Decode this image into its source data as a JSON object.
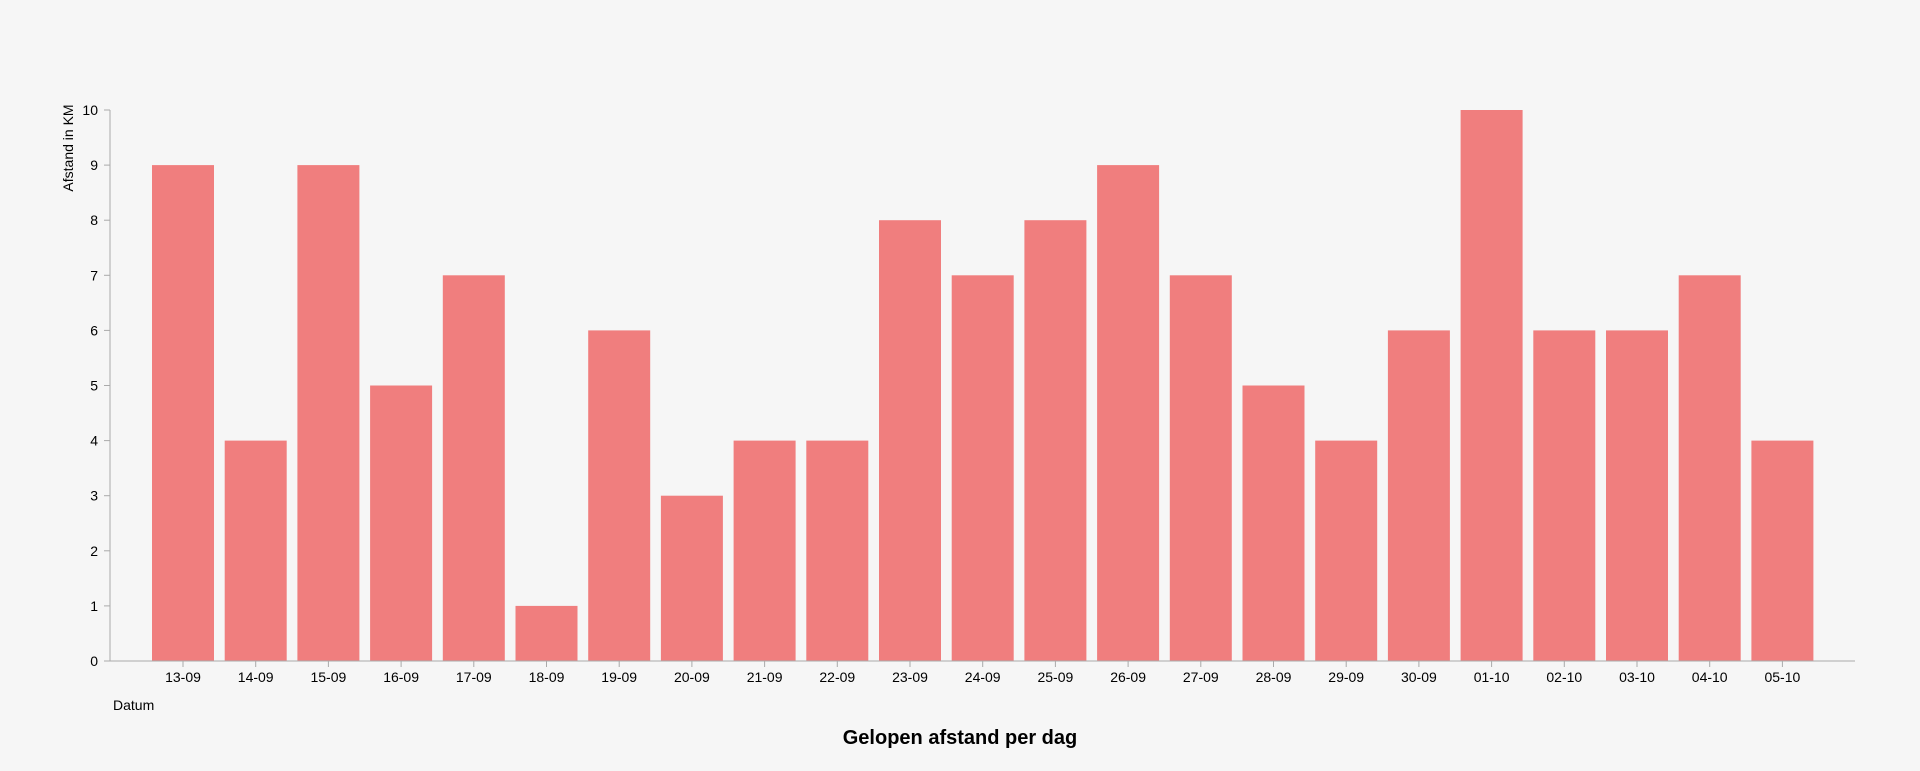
{
  "chart_data": {
    "type": "bar",
    "title": "Gelopen afstand per dag",
    "xlabel": "Datum",
    "ylabel": "Afstand in KM",
    "categories": [
      "13-09",
      "14-09",
      "15-09",
      "16-09",
      "17-09",
      "18-09",
      "19-09",
      "20-09",
      "21-09",
      "22-09",
      "23-09",
      "24-09",
      "25-09",
      "26-09",
      "27-09",
      "28-09",
      "29-09",
      "30-09",
      "01-10",
      "02-10",
      "03-10",
      "04-10",
      "05-10"
    ],
    "values": [
      9,
      4,
      9,
      5,
      7,
      1,
      6,
      3,
      4,
      4,
      8,
      7,
      8,
      9,
      7,
      5,
      4,
      6,
      10,
      6,
      6,
      7,
      4
    ],
    "ylim": [
      0,
      10
    ],
    "yticks": [
      0,
      1,
      2,
      3,
      4,
      5,
      6,
      7,
      8,
      9,
      10
    ],
    "grid": false,
    "colors": {
      "bar": "#f07e7e",
      "axis": "#aaaaaa",
      "background": "#f6f6f6"
    }
  }
}
